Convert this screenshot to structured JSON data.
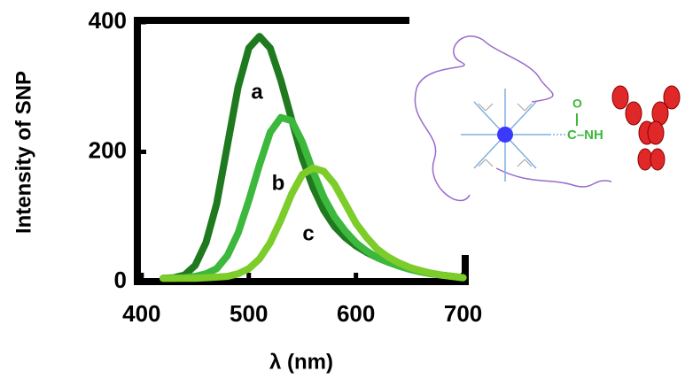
{
  "chart_data": {
    "type": "line",
    "x_label": "λ (nm)",
    "y_label": "Intensity of SNP",
    "x": [
      420,
      430,
      440,
      450,
      460,
      470,
      480,
      490,
      500,
      510,
      520,
      530,
      540,
      550,
      560,
      570,
      580,
      590,
      600,
      610,
      620,
      630,
      640,
      650,
      660,
      670,
      680,
      690,
      700
    ],
    "series": [
      {
        "name": "a",
        "color": "#1f7a1f",
        "values": [
          5,
          6,
          10,
          25,
          60,
          120,
          210,
          300,
          360,
          378,
          360,
          310,
          250,
          190,
          145,
          110,
          85,
          68,
          55,
          45,
          37,
          30,
          25,
          20,
          16,
          13,
          10,
          8,
          6
        ]
      },
      {
        "name": "b",
        "color": "#3cb83c",
        "values": [
          5,
          5,
          6,
          8,
          12,
          20,
          40,
          75,
          125,
          180,
          230,
          253,
          248,
          215,
          170,
          130,
          100,
          78,
          60,
          47,
          37,
          30,
          24,
          19,
          15,
          12,
          10,
          8,
          6
        ]
      },
      {
        "name": "c",
        "color": "#7ccc2a",
        "values": [
          5,
          5,
          5,
          5,
          6,
          7,
          8,
          12,
          20,
          35,
          60,
          95,
          135,
          165,
          175,
          170,
          150,
          120,
          90,
          68,
          50,
          38,
          29,
          22,
          17,
          13,
          10,
          8,
          6
        ]
      }
    ],
    "xlim": [
      396,
      702
    ],
    "ylim": [
      0,
      400
    ],
    "xticks": [
      400,
      500,
      600,
      700
    ],
    "yticks": [
      0,
      200,
      400
    ],
    "illustration": {
      "oxygen": "O",
      "linker": "C–NH"
    }
  }
}
